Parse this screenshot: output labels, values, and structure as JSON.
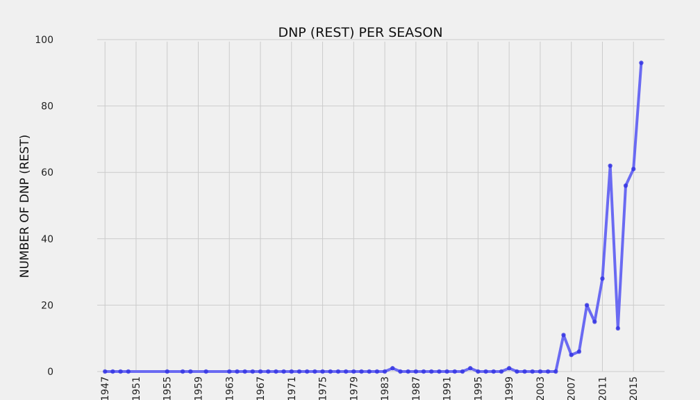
{
  "chart_data": {
    "type": "line",
    "title": "DNP (REST) PER SEASON",
    "xlabel": "",
    "ylabel": "NUMBER OF DNP (REST)",
    "xlim": [
      1946,
      2019
    ],
    "ylim": [
      0,
      100
    ],
    "xticks": [
      1947,
      1951,
      1955,
      1959,
      1963,
      1967,
      1971,
      1975,
      1979,
      1983,
      1987,
      1991,
      1995,
      1999,
      2003,
      2007,
      2011,
      2015
    ],
    "yticks": [
      0,
      20,
      40,
      60,
      80,
      100
    ],
    "grid": true,
    "line_color": "#6a6af2",
    "marker_color": "#2f2fe0",
    "series": [
      {
        "x": [
          1947,
          1948,
          1949,
          1950,
          1955,
          1957,
          1958,
          1960,
          1963,
          1964,
          1965,
          1966,
          1967,
          1968,
          1969,
          1970,
          1971,
          1972,
          1973,
          1974,
          1975,
          1976,
          1977,
          1978,
          1979,
          1980,
          1981,
          1982,
          1983,
          1984,
          1985,
          1986,
          1987,
          1988,
          1989,
          1990,
          1991,
          1992,
          1993,
          1994,
          1995,
          1996,
          1997,
          1998,
          1999,
          2000,
          2001,
          2002,
          2003,
          2004,
          2005,
          2006,
          2007,
          2008,
          2009,
          2010,
          2011,
          2012,
          2013,
          2014,
          2015,
          2016
        ],
        "values": [
          0,
          0,
          0,
          0,
          0,
          0,
          0,
          0,
          0,
          0,
          0,
          0,
          0,
          0,
          0,
          0,
          0,
          0,
          0,
          0,
          0,
          0,
          0,
          0,
          0,
          0,
          0,
          0,
          0,
          1,
          0,
          0,
          0,
          0,
          0,
          0,
          0,
          0,
          0,
          1,
          0,
          0,
          0,
          0,
          1,
          0,
          0,
          0,
          0,
          0,
          0,
          11,
          5,
          6,
          20,
          15,
          28,
          62,
          13,
          56,
          61,
          93
        ]
      }
    ]
  }
}
